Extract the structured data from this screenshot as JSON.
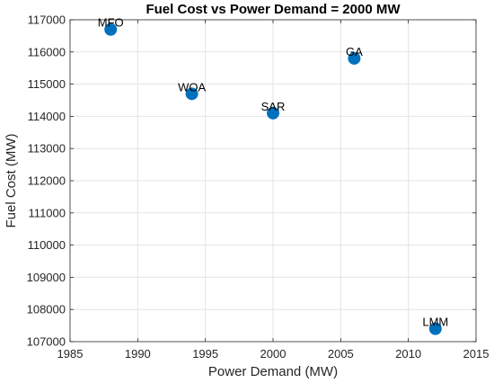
{
  "chart_data": {
    "type": "scatter",
    "title": "Fuel Cost vs Power Demand = 2000 MW",
    "xlabel": "Power Demand (MW)",
    "ylabel": "Fuel Cost (MW)",
    "xlim": [
      1985,
      2015
    ],
    "ylim": [
      107000,
      117000
    ],
    "xticks": [
      "1985",
      "1990",
      "1995",
      "2000",
      "2005",
      "2010",
      "2015"
    ],
    "yticks": [
      "107000",
      "108000",
      "109000",
      "110000",
      "111000",
      "112000",
      "113000",
      "114000",
      "115000",
      "116000",
      "117000"
    ],
    "grid": true,
    "points": [
      {
        "label": "MFO",
        "x": 1988,
        "y": 116700
      },
      {
        "label": "WOA",
        "x": 1994,
        "y": 114700
      },
      {
        "label": "SAR",
        "x": 2000,
        "y": 114100
      },
      {
        "label": "GA",
        "x": 2006,
        "y": 115800
      },
      {
        "label": "LMM",
        "x": 2012,
        "y": 107400
      }
    ],
    "marker_color": "#0072BD"
  }
}
